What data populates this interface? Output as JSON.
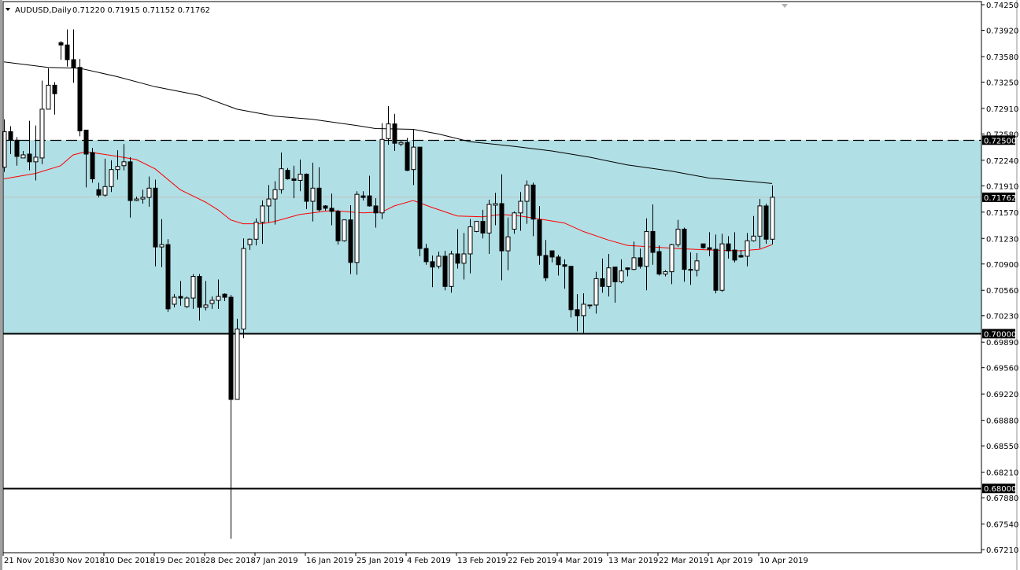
{
  "header": {
    "symbol": "AUDUSD,Daily",
    "ohlc": "0.71220 0.71915 0.71152 0.71762"
  },
  "colors": {
    "zone_fill": "#b0dfe5",
    "bull_body": "#ffffff",
    "bear_body": "#000000",
    "fast_ma": "#ff0000",
    "slow_ma": "#000000",
    "price_line": "#c0c0c0",
    "level_label_bg": "#000000"
  },
  "chart_data": {
    "type": "candlestick",
    "x_ticks": [
      {
        "i": 0,
        "label": "21 Nov 2018"
      },
      {
        "i": 8,
        "label": "30 Nov 2018"
      },
      {
        "i": 16,
        "label": "10 Dec 2018"
      },
      {
        "i": 24,
        "label": "19 Dec 2018"
      },
      {
        "i": 32,
        "label": "28 Dec 2018"
      },
      {
        "i": 40,
        "label": "7 Jan 2019"
      },
      {
        "i": 48,
        "label": "16 Jan 2019"
      },
      {
        "i": 56,
        "label": "25 Jan 2019"
      },
      {
        "i": 64,
        "label": "4 Feb 2019"
      },
      {
        "i": 72,
        "label": "13 Feb 2019"
      },
      {
        "i": 80,
        "label": "22 Feb 2019"
      },
      {
        "i": 88,
        "label": "4 Mar 2019"
      },
      {
        "i": 96,
        "label": "13 Mar 2019"
      },
      {
        "i": 104,
        "label": "22 Mar 2019"
      },
      {
        "i": 112,
        "label": "1 Apr 2019"
      },
      {
        "i": 120,
        "label": "10 Apr 2019"
      }
    ],
    "y_ticks": [
      "0.74250",
      "0.73920",
      "0.73580",
      "0.73250",
      "0.72910",
      "0.72580",
      "0.72240",
      "0.71910",
      "0.71570",
      "0.71230",
      "0.70900",
      "0.70560",
      "0.70230",
      "0.69890",
      "0.69560",
      "0.69220",
      "0.68880",
      "0.68550",
      "0.68210",
      "0.67880",
      "0.67540",
      "0.67210"
    ],
    "ylim": [
      0.6721,
      0.7425
    ],
    "levels": [
      {
        "value": 0.725,
        "label": "0.72500",
        "style": "dashed"
      },
      {
        "value": 0.7,
        "label": "0.70000",
        "style": "solid"
      },
      {
        "value": 0.68,
        "label": "0.68000",
        "style": "solid"
      }
    ],
    "zone": [
      0.7,
      0.725
    ],
    "current_price": {
      "value": 0.71762,
      "label": "0.71762"
    },
    "candles": [
      [
        0.7215,
        0.7277,
        0.7209,
        0.7261
      ],
      [
        0.7261,
        0.7268,
        0.7232,
        0.725
      ],
      [
        0.725,
        0.7254,
        0.7217,
        0.7229
      ],
      [
        0.7227,
        0.7236,
        0.7227,
        0.7231
      ],
      [
        0.7232,
        0.7275,
        0.7211,
        0.7222
      ],
      [
        0.7222,
        0.7269,
        0.7198,
        0.7228
      ],
      [
        0.7227,
        0.7327,
        0.7219,
        0.729
      ],
      [
        0.729,
        0.7343,
        0.7293,
        0.7321
      ],
      [
        0.7321,
        0.7325,
        0.7283,
        0.731
      ],
      [
        0.7376,
        0.7378,
        0.7354,
        0.7373
      ],
      [
        0.7373,
        0.7393,
        0.7345,
        0.7354
      ],
      [
        0.7354,
        0.7393,
        0.7324,
        0.7344
      ],
      [
        0.7344,
        0.7355,
        0.7255,
        0.7262
      ],
      [
        0.7263,
        0.7263,
        0.7189,
        0.7232
      ],
      [
        0.7234,
        0.724,
        0.7195,
        0.72
      ],
      [
        0.7186,
        0.7195,
        0.7176,
        0.7179
      ],
      [
        0.7179,
        0.7226,
        0.7177,
        0.719
      ],
      [
        0.719,
        0.7224,
        0.7183,
        0.7212
      ],
      [
        0.7212,
        0.7237,
        0.7199,
        0.7216
      ],
      [
        0.7217,
        0.7245,
        0.7211,
        0.7222
      ],
      [
        0.7222,
        0.7228,
        0.715,
        0.7172
      ],
      [
        0.7172,
        0.7177,
        0.7171,
        0.7174
      ],
      [
        0.7174,
        0.7186,
        0.7168,
        0.7176
      ],
      [
        0.7176,
        0.7203,
        0.7164,
        0.7188
      ],
      [
        0.7188,
        0.7199,
        0.7087,
        0.7112
      ],
      [
        0.7112,
        0.7148,
        0.7086,
        0.7115
      ],
      [
        0.7115,
        0.7122,
        0.7028,
        0.7032
      ],
      [
        0.7038,
        0.7051,
        0.7034,
        0.7047
      ],
      [
        0.7048,
        0.7068,
        0.7036,
        0.7046
      ],
      [
        0.7035,
        0.7048,
        0.7033,
        0.7046
      ],
      [
        0.7046,
        0.7077,
        0.7032,
        0.7074
      ],
      [
        0.7074,
        0.7077,
        0.7017,
        0.7034
      ],
      [
        0.7034,
        0.7068,
        0.703,
        0.7037
      ],
      [
        0.7039,
        0.7048,
        0.7032,
        0.7043
      ],
      [
        0.7043,
        0.707,
        0.7032,
        0.7048
      ],
      [
        0.7051,
        0.7052,
        0.7042,
        0.7047
      ],
      [
        0.7047,
        0.705,
        0.6735,
        0.6915
      ],
      [
        0.6915,
        0.7019,
        0.6915,
        0.7006
      ],
      [
        0.7006,
        0.7123,
        0.6994,
        0.711
      ],
      [
        0.7115,
        0.7123,
        0.7108,
        0.7122
      ],
      [
        0.7122,
        0.7149,
        0.7114,
        0.7144
      ],
      [
        0.7144,
        0.7172,
        0.7116,
        0.7165
      ],
      [
        0.7165,
        0.7192,
        0.7144,
        0.7174
      ],
      [
        0.7174,
        0.7197,
        0.7141,
        0.7186
      ],
      [
        0.7186,
        0.7234,
        0.7181,
        0.7213
      ],
      [
        0.7211,
        0.7214,
        0.7199,
        0.72
      ],
      [
        0.72,
        0.7217,
        0.7175,
        0.7198
      ],
      [
        0.7198,
        0.7225,
        0.7184,
        0.7206
      ],
      [
        0.7206,
        0.7207,
        0.7161,
        0.7171
      ],
      [
        0.7171,
        0.7221,
        0.7145,
        0.7188
      ],
      [
        0.7188,
        0.7215,
        0.7158,
        0.716
      ],
      [
        0.7165,
        0.7166,
        0.7159,
        0.7162
      ],
      [
        0.7162,
        0.7181,
        0.714,
        0.7158
      ],
      [
        0.7158,
        0.716,
        0.7115,
        0.712
      ],
      [
        0.712,
        0.7147,
        0.7119,
        0.7147
      ],
      [
        0.7147,
        0.7166,
        0.7077,
        0.7092
      ],
      [
        0.7092,
        0.7184,
        0.7076,
        0.718
      ],
      [
        0.7178,
        0.7184,
        0.7172,
        0.7176
      ],
      [
        0.7178,
        0.7204,
        0.7164,
        0.7165
      ],
      [
        0.7165,
        0.7175,
        0.7137,
        0.7156
      ],
      [
        0.7156,
        0.7272,
        0.7148,
        0.7251
      ],
      [
        0.7252,
        0.7294,
        0.7244,
        0.7271
      ],
      [
        0.7271,
        0.7284,
        0.7236,
        0.7246
      ],
      [
        0.7245,
        0.725,
        0.7242,
        0.7247
      ],
      [
        0.7247,
        0.7253,
        0.721,
        0.7211
      ],
      [
        0.7212,
        0.7264,
        0.7192,
        0.7241
      ],
      [
        0.7241,
        0.7241,
        0.71,
        0.711
      ],
      [
        0.711,
        0.7116,
        0.7089,
        0.7093
      ],
      [
        0.7093,
        0.7101,
        0.706,
        0.7086
      ],
      [
        0.7087,
        0.7106,
        0.7084,
        0.71
      ],
      [
        0.71,
        0.7107,
        0.7056,
        0.7061
      ],
      [
        0.7061,
        0.7107,
        0.7053,
        0.7103
      ],
      [
        0.7103,
        0.7135,
        0.7084,
        0.7091
      ],
      [
        0.7091,
        0.713,
        0.707,
        0.7103
      ],
      [
        0.7103,
        0.7148,
        0.7078,
        0.7138
      ],
      [
        0.7132,
        0.7145,
        0.7131,
        0.7145
      ],
      [
        0.7145,
        0.716,
        0.7123,
        0.713
      ],
      [
        0.713,
        0.7173,
        0.7103,
        0.7167
      ],
      [
        0.7166,
        0.7182,
        0.714,
        0.7168
      ],
      [
        0.7168,
        0.7206,
        0.7069,
        0.7107
      ],
      [
        0.7107,
        0.715,
        0.7082,
        0.7125
      ],
      [
        0.7135,
        0.7158,
        0.7129,
        0.7156
      ],
      [
        0.7156,
        0.7183,
        0.7133,
        0.7171
      ],
      [
        0.7171,
        0.7198,
        0.7142,
        0.7192
      ],
      [
        0.7192,
        0.7195,
        0.7126,
        0.7148
      ],
      [
        0.7147,
        0.7165,
        0.7089,
        0.7101
      ],
      [
        0.7101,
        0.7121,
        0.7068,
        0.7072
      ],
      [
        0.7107,
        0.7107,
        0.7092,
        0.7099
      ],
      [
        0.7099,
        0.7102,
        0.7075,
        0.7089
      ],
      [
        0.7089,
        0.7096,
        0.7058,
        0.7087
      ],
      [
        0.7087,
        0.7087,
        0.7021,
        0.7031
      ],
      [
        0.7031,
        0.7051,
        0.7003,
        0.7023
      ],
      [
        0.7023,
        0.7052,
        0.7001,
        0.7038
      ],
      [
        0.7036,
        0.7037,
        0.7032,
        0.7037
      ],
      [
        0.7037,
        0.708,
        0.7026,
        0.7071
      ],
      [
        0.7071,
        0.7097,
        0.7053,
        0.7061
      ],
      [
        0.7061,
        0.7103,
        0.7048,
        0.7085
      ],
      [
        0.7086,
        0.7086,
        0.704,
        0.7067
      ],
      [
        0.7067,
        0.7096,
        0.7065,
        0.7081
      ],
      [
        0.7085,
        0.7085,
        0.7074,
        0.7083
      ],
      [
        0.7083,
        0.7119,
        0.7082,
        0.7098
      ],
      [
        0.7098,
        0.711,
        0.7084,
        0.7087
      ],
      [
        0.7087,
        0.7149,
        0.7056,
        0.7132
      ],
      [
        0.7132,
        0.7167,
        0.7089,
        0.7105
      ],
      [
        0.7106,
        0.7114,
        0.7075,
        0.7077
      ],
      [
        0.7077,
        0.7082,
        0.7074,
        0.708
      ],
      [
        0.708,
        0.7116,
        0.7064,
        0.7115
      ],
      [
        0.7115,
        0.7147,
        0.7112,
        0.7135
      ],
      [
        0.7135,
        0.7137,
        0.7067,
        0.7083
      ],
      [
        0.7083,
        0.7105,
        0.7063,
        0.7082
      ],
      [
        0.7082,
        0.7104,
        0.7074,
        0.7094
      ],
      [
        0.7116,
        0.7116,
        0.711,
        0.7111
      ],
      [
        0.7111,
        0.7131,
        0.71,
        0.7109
      ],
      [
        0.7109,
        0.7128,
        0.7052,
        0.7056
      ],
      [
        0.7056,
        0.7129,
        0.7054,
        0.7116
      ],
      [
        0.7116,
        0.7126,
        0.7097,
        0.7107
      ],
      [
        0.7108,
        0.7131,
        0.7092,
        0.7095
      ],
      [
        0.7101,
        0.7108,
        0.7098,
        0.7099
      ],
      [
        0.71,
        0.713,
        0.7087,
        0.712
      ],
      [
        0.712,
        0.7152,
        0.7119,
        0.7126
      ],
      [
        0.7126,
        0.7174,
        0.711,
        0.7165
      ],
      [
        0.7165,
        0.7168,
        0.7116,
        0.7122
      ],
      [
        0.7122,
        0.71915,
        0.71152,
        0.71762
      ]
    ],
    "slow_ma": [
      [
        0,
        0.7351
      ],
      [
        7,
        0.7344
      ],
      [
        12,
        0.7343
      ],
      [
        18,
        0.7332
      ],
      [
        24,
        0.7319
      ],
      [
        31,
        0.7308
      ],
      [
        37,
        0.729
      ],
      [
        43,
        0.7281
      ],
      [
        49,
        0.7277
      ],
      [
        56,
        0.7269
      ],
      [
        59,
        0.7265
      ],
      [
        65,
        0.7264
      ],
      [
        69,
        0.7258
      ],
      [
        74,
        0.7248
      ],
      [
        81,
        0.7242
      ],
      [
        87,
        0.7236
      ],
      [
        93,
        0.7228
      ],
      [
        99,
        0.7218
      ],
      [
        106,
        0.721
      ],
      [
        112,
        0.7201
      ],
      [
        118,
        0.7197
      ],
      [
        122,
        0.7194
      ]
    ],
    "fast_ma": [
      [
        0,
        0.72
      ],
      [
        5,
        0.7207
      ],
      [
        9,
        0.7217
      ],
      [
        11,
        0.7231
      ],
      [
        13,
        0.7235
      ],
      [
        14,
        0.7234
      ],
      [
        18,
        0.7229
      ],
      [
        21,
        0.7225
      ],
      [
        24,
        0.7213
      ],
      [
        28,
        0.7186
      ],
      [
        32,
        0.717
      ],
      [
        34,
        0.716
      ],
      [
        36,
        0.7147
      ],
      [
        38,
        0.7142
      ],
      [
        41,
        0.7142
      ],
      [
        43,
        0.7145
      ],
      [
        47,
        0.7154
      ],
      [
        52,
        0.7159
      ],
      [
        57,
        0.7156
      ],
      [
        60,
        0.7157
      ],
      [
        62,
        0.7165
      ],
      [
        65,
        0.7172
      ],
      [
        68,
        0.7163
      ],
      [
        72,
        0.7152
      ],
      [
        76,
        0.7151
      ],
      [
        79,
        0.7154
      ],
      [
        82,
        0.7152
      ],
      [
        86,
        0.7147
      ],
      [
        89,
        0.7143
      ],
      [
        92,
        0.7132
      ],
      [
        96,
        0.7121
      ],
      [
        99,
        0.7114
      ],
      [
        103,
        0.7112
      ],
      [
        107,
        0.711
      ],
      [
        112,
        0.7108
      ],
      [
        117,
        0.7107
      ],
      [
        120,
        0.7109
      ],
      [
        122,
        0.7115
      ]
    ]
  }
}
